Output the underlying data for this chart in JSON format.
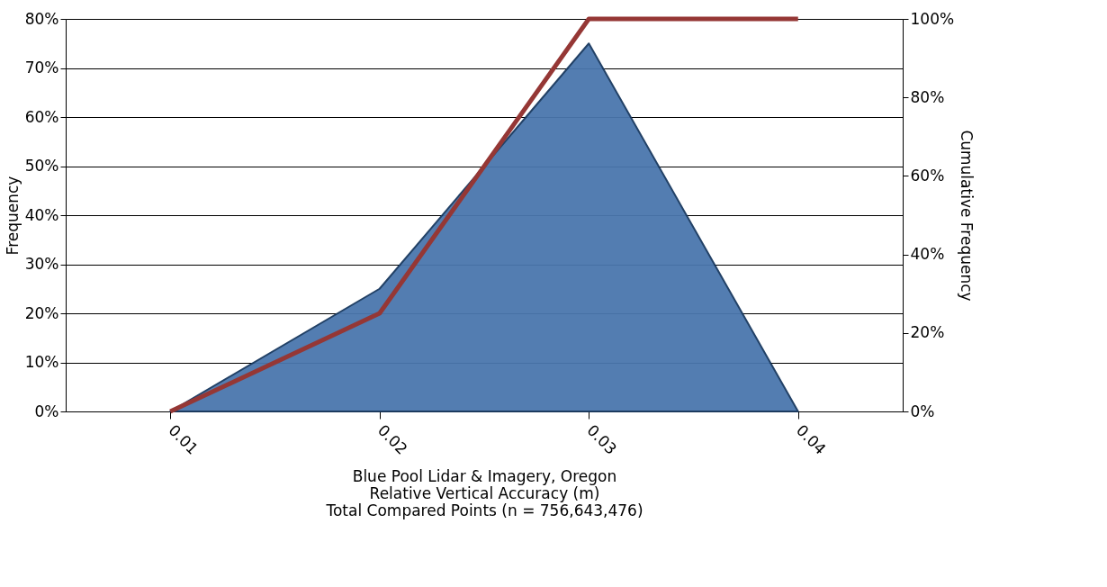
{
  "chart_data": {
    "type": "area",
    "xlabel": "Blue Pool Lidar & Imagery, Oregon\nRelative Vertical Accuracy (m)\nTotal Compared Points (n = 756,643,476)",
    "ylabel": "Frequency",
    "y2label": "Cumulative Frequency",
    "categories": [
      "0.01",
      "0.02",
      "0.03",
      "0.04"
    ],
    "series": [
      {
        "color": "#4a77ad",
        "values": [
          0,
          25,
          75,
          0
        ]
      },
      {
        "type": "line",
        "axis": "y2",
        "color": "#953735",
        "values": [
          0,
          25,
          100,
          100
        ]
      }
    ],
    "ylim": [
      0,
      80
    ],
    "yticks": [
      {
        "value": 0,
        "label": "0%"
      },
      {
        "value": 10,
        "label": "10%"
      },
      {
        "value": 20,
        "label": "20%"
      },
      {
        "value": 30,
        "label": "30%"
      },
      {
        "value": 40,
        "label": "40%"
      },
      {
        "value": 50,
        "label": "50%"
      },
      {
        "value": 60,
        "label": "60%"
      },
      {
        "value": 70,
        "label": "70%"
      },
      {
        "value": 80,
        "label": "80%"
      }
    ],
    "y2lim": [
      0,
      100
    ],
    "y2ticks": [
      {
        "value": 0,
        "label": "0%"
      },
      {
        "value": 20,
        "label": "20%"
      },
      {
        "value": 40,
        "label": "40%"
      },
      {
        "value": 60,
        "label": "60%"
      },
      {
        "value": 80,
        "label": "80%"
      },
      {
        "value": 100,
        "label": "100%"
      }
    ],
    "grid": "y",
    "legend": false,
    "line_style": "solid",
    "marker": "none"
  }
}
